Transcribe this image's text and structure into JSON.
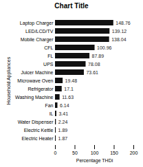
{
  "chart_data": {
    "type": "bar",
    "orientation": "horizontal",
    "title": "Chart Title",
    "xlabel": "Percentage THDi",
    "ylabel": "Household Appliances",
    "categories": [
      "Electric Heater",
      "Electric Kettle",
      "Water Dispenser",
      "IL",
      "Fan",
      "Washing Machine",
      "Refrigerator",
      "Microwave Oven",
      "Juicer Machine",
      "UPS",
      "FL",
      "CFL",
      "Mobile Charger",
      "LED/LCD/TV",
      "Laptop Charger"
    ],
    "values": [
      1.87,
      1.89,
      2.24,
      3.41,
      6.14,
      11.63,
      17.1,
      19.48,
      73.61,
      78.08,
      87.89,
      100.96,
      138.04,
      139.12,
      148.76
    ],
    "color": "#111111",
    "xlim": [
      0,
      200
    ],
    "xticks": [
      0,
      50,
      100,
      150,
      200
    ],
    "grid": false,
    "data_labels": true
  }
}
